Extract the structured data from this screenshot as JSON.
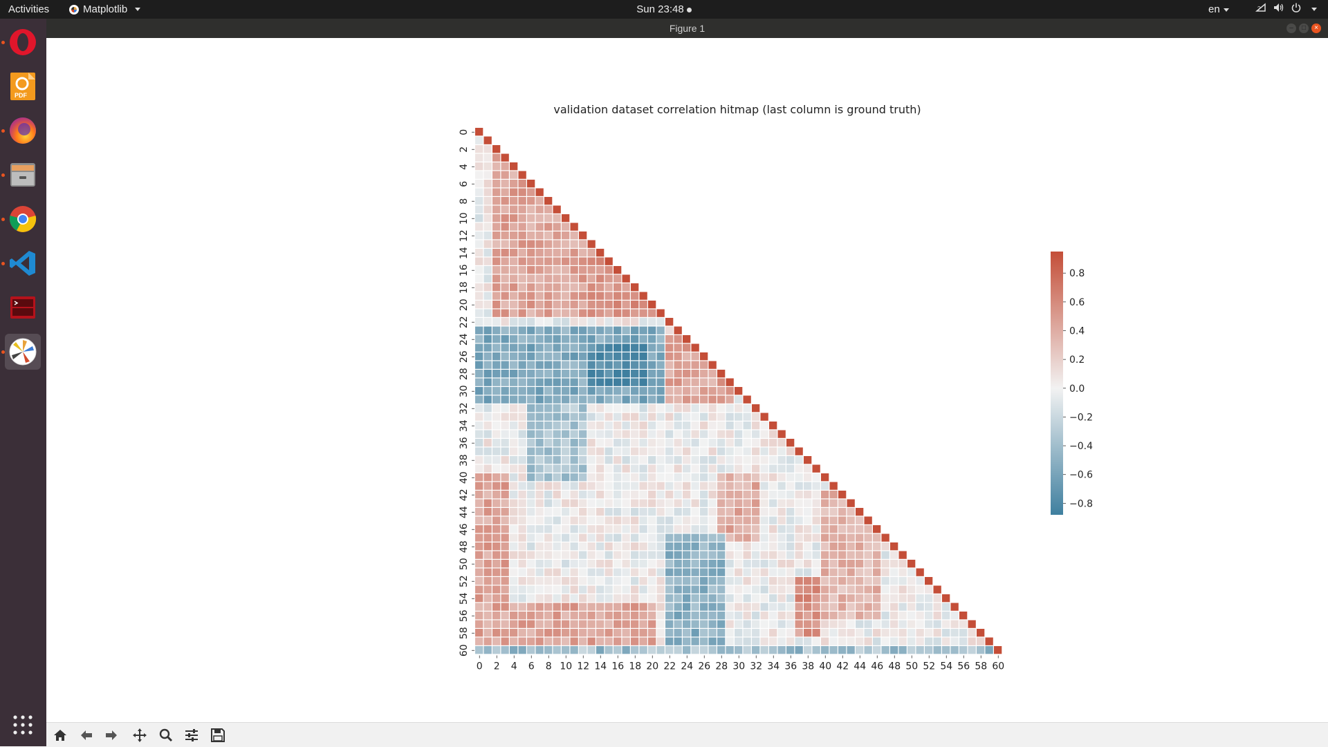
{
  "topbar": {
    "activities": "Activities",
    "app_name": "Matplotlib",
    "clock": "Sun 23:48",
    "language": "en"
  },
  "window": {
    "title": "Figure 1"
  },
  "dock": {
    "items": [
      {
        "name": "opera-icon",
        "running": true
      },
      {
        "name": "pdf-editor-icon",
        "running": false,
        "label": "PDF"
      },
      {
        "name": "firefox-icon",
        "running": true
      },
      {
        "name": "file-manager-icon",
        "running": true
      },
      {
        "name": "chrome-icon",
        "running": true
      },
      {
        "name": "vscode-icon",
        "running": true
      },
      {
        "name": "terminal-app-icon",
        "running": false
      },
      {
        "name": "matplotlib-icon",
        "running": true
      }
    ],
    "show_apps": "show-applications-icon"
  },
  "toolbar": {
    "tools": [
      "home-icon",
      "back-arrow-icon",
      "forward-arrow-icon",
      "pan-icon",
      "zoom-icon",
      "configure-subplots-icon",
      "save-icon"
    ]
  },
  "chart_data": {
    "type": "heatmap",
    "title": "validation dataset correlation hitmap (last column is ground truth)",
    "n": 61,
    "mask": "upper triangle (lower triangle shown, diagonal included)",
    "x_ticks": [
      0,
      2,
      4,
      6,
      8,
      10,
      12,
      14,
      16,
      18,
      20,
      22,
      24,
      26,
      28,
      30,
      32,
      34,
      36,
      38,
      40,
      42,
      44,
      46,
      48,
      50,
      52,
      54,
      56,
      58,
      60
    ],
    "y_ticks": [
      0,
      2,
      4,
      6,
      8,
      10,
      12,
      14,
      16,
      18,
      20,
      22,
      24,
      26,
      28,
      30,
      32,
      34,
      36,
      38,
      40,
      42,
      44,
      46,
      48,
      50,
      52,
      54,
      56,
      58,
      60
    ],
    "colorbar": {
      "range": [
        -0.88,
        0.95
      ],
      "ticks": [
        "0.8",
        "0.6",
        "0.4",
        "0.2",
        "0.0",
        "−0.2",
        "−0.4",
        "−0.6",
        "−0.8"
      ],
      "tick_values": [
        0.8,
        0.6,
        0.4,
        0.2,
        0.0,
        -0.2,
        -0.4,
        -0.6,
        -0.8
      ]
    },
    "colors": {
      "negative": "#3f7f9f",
      "neutral": "#f2f2f2",
      "positive": "#c44e38"
    },
    "regions": [
      {
        "rows": [
          1,
          21
        ],
        "cols": [
          2,
          12
        ],
        "value": 0.45
      },
      {
        "rows": [
          14,
          21
        ],
        "cols": [
          13,
          21
        ],
        "value": 0.55
      },
      {
        "rows": [
          23,
          31
        ],
        "cols": [
          0,
          21
        ],
        "value": -0.55
      },
      {
        "rows": [
          25,
          29
        ],
        "cols": [
          13,
          19
        ],
        "value": -0.8
      },
      {
        "rows": [
          24,
          31
        ],
        "cols": [
          22,
          29
        ],
        "value": 0.45
      },
      {
        "rows": [
          32,
          40
        ],
        "cols": [
          6,
          12
        ],
        "value": -0.35
      },
      {
        "rows": [
          40,
          60
        ],
        "cols": [
          0,
          3
        ],
        "value": 0.45
      },
      {
        "rows": [
          40,
          47
        ],
        "cols": [
          28,
          32
        ],
        "value": 0.4
      },
      {
        "rows": [
          42,
          56
        ],
        "cols": [
          40,
          46
        ],
        "value": 0.35
      },
      {
        "rows": [
          47,
          60
        ],
        "cols": [
          22,
          28
        ],
        "value": -0.5
      },
      {
        "rows": [
          52,
          58
        ],
        "cols": [
          37,
          39
        ],
        "value": 0.55
      },
      {
        "rows": [
          55,
          60
        ],
        "cols": [
          3,
          20
        ],
        "value": 0.45
      }
    ],
    "diagonal_value": 0.95,
    "last_row_value": -0.4
  }
}
